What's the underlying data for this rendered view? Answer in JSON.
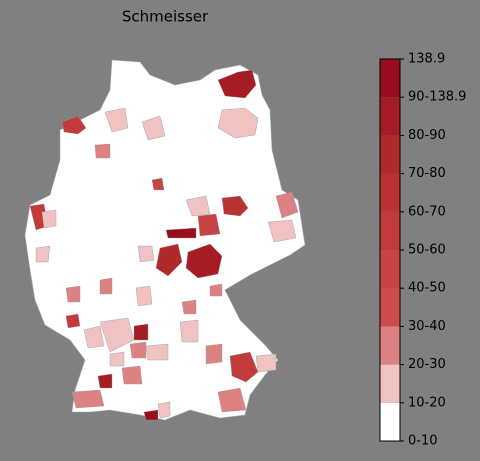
{
  "title": "Schmeisser",
  "colorbar": {
    "ticks": [
      "0-10",
      "10-20",
      "20-30",
      "30-40",
      "40-50",
      "50-60",
      "60-70",
      "70-80",
      "80-90",
      "90-138.9",
      "138.9"
    ],
    "colors": [
      "#ffffff",
      "#f0c2c2",
      "#dc8282",
      "#cc4c4c",
      "#c84444",
      "#c23a3a",
      "#ba3232",
      "#b02a2c",
      "#a61c24",
      "#980e1e"
    ]
  }
}
